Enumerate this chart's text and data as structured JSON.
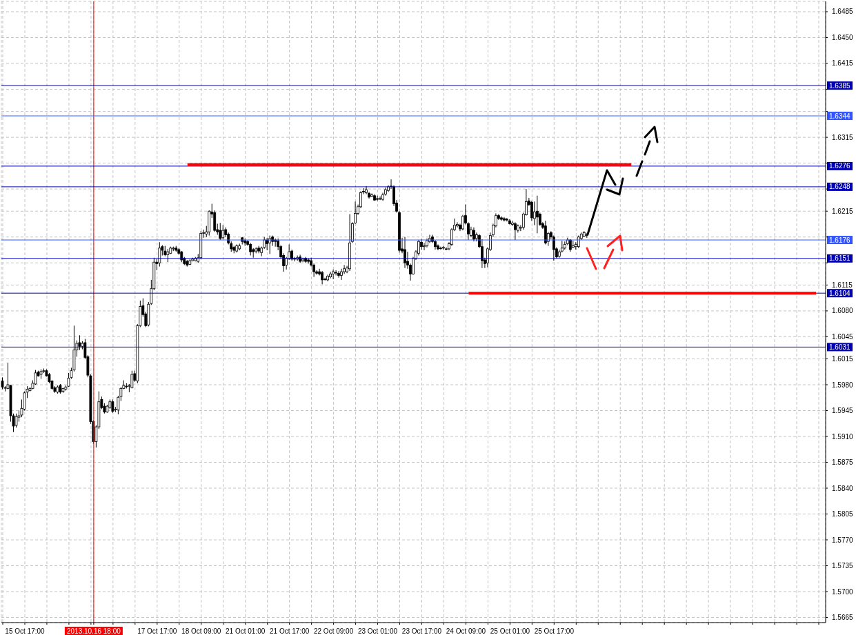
{
  "chart_data": {
    "type": "candlestick",
    "color": "#000000",
    "categories": [
      null,
      null,
      null,
      null,
      null,
      null,
      null,
      null,
      "15 Oct 17:00",
      null,
      null,
      null,
      null,
      null,
      null,
      null,
      null,
      null,
      null,
      null,
      null,
      null,
      null,
      null,
      null,
      null,
      null,
      null,
      null,
      null,
      null,
      null,
      null,
      "2013.10.16 18:00",
      null,
      null,
      null,
      null,
      null,
      null,
      null,
      null,
      null,
      null,
      null,
      null,
      null,
      null,
      null,
      null,
      null,
      null,
      null,
      null,
      null,
      null,
      "17 Oct 17:00",
      null,
      null,
      null,
      null,
      null,
      null,
      null,
      null,
      null,
      null,
      null,
      null,
      null,
      null,
      null,
      "18 Oct 09:00",
      null,
      null,
      null,
      null,
      null,
      null,
      null,
      null,
      null,
      null,
      null,
      null,
      null,
      null,
      null,
      "21 Oct 01:00",
      null,
      null,
      null,
      null,
      null,
      null,
      null,
      null,
      null,
      null,
      null,
      null,
      null,
      null,
      null,
      "21 Oct 17:00",
      null,
      null,
      null,
      null,
      null,
      null,
      null,
      null,
      null,
      null,
      null,
      null,
      null,
      null,
      null,
      "22 Oct 09:00",
      null,
      null,
      null,
      null,
      null,
      null,
      null,
      null,
      null,
      null,
      null,
      null,
      null,
      null,
      null,
      "23 Oct 01:00",
      null,
      null,
      null,
      null,
      null,
      null,
      null,
      null,
      null,
      null,
      null,
      null,
      null,
      null,
      null,
      "23 Oct 17:00",
      null,
      null,
      null,
      null,
      null,
      null,
      null,
      null,
      null,
      null,
      null,
      null,
      null,
      null,
      null,
      "24 Oct 09:00",
      null,
      null,
      null,
      null,
      null,
      null,
      null,
      null,
      null,
      null,
      null,
      null,
      null,
      null,
      null,
      "25 Oct 01:00",
      null,
      null,
      null,
      null,
      null,
      null,
      null,
      null,
      null,
      null,
      null,
      null,
      null,
      null,
      null,
      "25 Oct 17:00",
      null,
      null,
      null,
      null,
      null,
      null,
      null,
      null,
      null,
      null,
      null,
      null,
      null,
      null,
      null,
      null,
      null,
      null,
      null,
      null,
      null,
      null,
      null,
      null,
      null,
      null,
      null,
      null,
      null,
      null,
      null,
      null,
      null,
      null,
      null,
      null,
      null,
      null,
      null,
      null,
      null,
      null,
      null,
      null,
      null,
      null,
      null,
      null,
      null,
      null,
      null,
      null,
      null,
      null,
      null,
      null,
      null,
      null,
      null,
      null,
      null,
      null,
      null,
      null,
      null,
      null,
      null,
      null,
      null,
      null,
      null,
      null,
      null,
      null,
      null,
      null,
      null,
      null,
      null,
      null,
      null,
      null,
      null,
      null,
      null,
      null,
      null,
      null,
      null,
      null,
      null,
      null,
      null,
      null,
      null,
      null,
      null,
      null
    ],
    "ohlc": [
      [
        1.5985,
        1.599,
        1.5974,
        1.5977
      ],
      [
        1.5976,
        1.5978,
        1.5971,
        1.5976
      ],
      [
        1.5975,
        1.601,
        1.5974,
        1.598
      ],
      [
        1.5979,
        1.598,
        1.593,
        1.5938
      ],
      [
        1.5938,
        1.5941,
        1.5916,
        1.5924
      ],
      [
        1.5925,
        1.5941,
        1.5922,
        1.5937
      ],
      [
        1.5936,
        1.5945,
        1.593,
        1.5938
      ],
      [
        1.5939,
        1.596,
        1.5936,
        1.5948
      ],
      [
        1.5947,
        1.5971,
        1.5945,
        1.5969
      ],
      [
        1.597,
        1.5978,
        1.5962,
        1.5974
      ],
      [
        1.5972,
        1.5977,
        1.5971,
        1.5975
      ],
      [
        1.5975,
        1.5986,
        1.5974,
        1.5982
      ],
      [
        1.5981,
        1.6,
        1.598,
        1.5996
      ],
      [
        1.5997,
        1.5999,
        1.5991,
        1.5992
      ],
      [
        1.5994,
        1.6001,
        1.5988,
        1.5998
      ],
      [
        1.5998,
        1.6002,
        1.5996,
        1.5999
      ],
      [
        1.5999,
        1.6001,
        1.5991,
        1.5992
      ],
      [
        1.5994,
        1.5996,
        1.5982,
        1.5984
      ],
      [
        1.5985,
        1.5986,
        1.5973,
        1.5975
      ],
      [
        1.5976,
        1.5978,
        1.5969,
        1.5971
      ],
      [
        1.597,
        1.5979,
        1.5968,
        1.5977
      ],
      [
        1.5979,
        1.5981,
        1.5968,
        1.597
      ],
      [
        1.5971,
        1.5976,
        1.5969,
        1.5975
      ],
      [
        1.5974,
        1.5979,
        1.5972,
        1.5977
      ],
      [
        1.5978,
        1.5996,
        1.5977,
        1.5989
      ],
      [
        1.599,
        1.6003,
        1.5988,
        1.5999
      ],
      [
        1.6,
        1.606,
        1.5998,
        1.6027
      ],
      [
        1.6027,
        1.604,
        1.6018,
        1.6036
      ],
      [
        1.6037,
        1.6047,
        1.6027,
        1.6032
      ],
      [
        1.6032,
        1.6039,
        1.6028,
        1.6036
      ],
      [
        1.6037,
        1.6042,
        1.6015,
        1.6017
      ],
      [
        1.6018,
        1.602,
        1.599,
        1.5993
      ],
      [
        1.5992,
        1.5994,
        1.5927,
        1.593
      ],
      [
        1.593,
        1.5932,
        1.59,
        1.5903
      ],
      [
        1.5903,
        1.5925,
        1.5895,
        1.5923
      ],
      [
        1.5923,
        1.5971,
        1.592,
        1.5957
      ],
      [
        1.596,
        1.5964,
        1.5947,
        1.5949
      ],
      [
        1.5951,
        1.5955,
        1.5941,
        1.5943
      ],
      [
        1.5943,
        1.5953,
        1.5942,
        1.5951
      ],
      [
        1.5949,
        1.596,
        1.5947,
        1.5957
      ],
      [
        1.5957,
        1.596,
        1.5942,
        1.5944
      ],
      [
        1.5946,
        1.595,
        1.5943,
        1.5947
      ],
      [
        1.5946,
        1.5965,
        1.594,
        1.5963
      ],
      [
        1.5964,
        1.5977,
        1.5958,
        1.5975
      ],
      [
        1.5975,
        1.5986,
        1.5974,
        1.5979
      ],
      [
        1.5978,
        1.5982,
        1.5975,
        1.5978
      ],
      [
        1.5978,
        1.5981,
        1.597,
        1.5979
      ],
      [
        1.5976,
        1.5999,
        1.5975,
        1.5994
      ],
      [
        1.5995,
        1.5999,
        1.5984,
        1.5986
      ],
      [
        1.5985,
        1.6062,
        1.5982,
        1.606
      ],
      [
        1.606,
        1.6094,
        1.6058,
        1.6086
      ],
      [
        1.6087,
        1.6097,
        1.6072,
        1.6075
      ],
      [
        1.6076,
        1.6079,
        1.6058,
        1.606
      ],
      [
        1.6061,
        1.6092,
        1.6059,
        1.6089
      ],
      [
        1.609,
        1.6122,
        1.6088,
        1.611
      ],
      [
        1.611,
        1.6152,
        1.6108,
        1.6146
      ],
      [
        1.6146,
        1.615,
        1.6135,
        1.6144
      ],
      [
        1.6145,
        1.6173,
        1.614,
        1.6165
      ],
      [
        1.6167,
        1.6169,
        1.6155,
        1.6162
      ],
      [
        1.6161,
        1.6168,
        1.6154,
        1.6156
      ],
      [
        1.6156,
        1.6164,
        1.6146,
        1.616
      ],
      [
        1.6158,
        1.6167,
        1.6157,
        1.6165
      ],
      [
        1.6164,
        1.6167,
        1.6161,
        1.6165
      ],
      [
        1.6165,
        1.6168,
        1.616,
        1.6162
      ],
      [
        1.6163,
        1.6165,
        1.6156,
        1.6158
      ],
      [
        1.616,
        1.6161,
        1.6146,
        1.6149
      ],
      [
        1.6151,
        1.6153,
        1.6142,
        1.6144
      ],
      [
        1.6147,
        1.6149,
        1.614,
        1.6142
      ],
      [
        1.6143,
        1.615,
        1.6142,
        1.6148
      ],
      [
        1.6148,
        1.6152,
        1.6147,
        1.615
      ],
      [
        1.6148,
        1.6153,
        1.6147,
        1.6151
      ],
      [
        1.6147,
        1.6157,
        1.6145,
        1.6152
      ],
      [
        1.6152,
        1.6188,
        1.615,
        1.6185
      ],
      [
        1.6185,
        1.619,
        1.6179,
        1.6186
      ],
      [
        1.6184,
        1.6195,
        1.618,
        1.6187
      ],
      [
        1.6187,
        1.6216,
        1.6182,
        1.6215
      ],
      [
        1.6214,
        1.6225,
        1.6206,
        1.6211
      ],
      [
        1.6213,
        1.6216,
        1.6187,
        1.6189
      ],
      [
        1.619,
        1.6198,
        1.6183,
        1.6187
      ],
      [
        1.6189,
        1.6199,
        1.6176,
        1.6178
      ],
      [
        1.6179,
        1.6196,
        1.6177,
        1.6189
      ],
      [
        1.619,
        1.6193,
        1.618,
        1.6183
      ],
      [
        1.6184,
        1.6186,
        1.617,
        1.6172
      ],
      [
        1.6171,
        1.6174,
        1.616,
        1.6164
      ],
      [
        1.6166,
        1.6168,
        1.6158,
        1.6162
      ],
      [
        1.6161,
        1.617,
        1.6159,
        1.6168
      ],
      [
        1.6164,
        1.6171,
        1.6162,
        1.6168
      ],
      [
        1.6179,
        1.618,
        1.617,
        1.6174
      ],
      [
        1.6175,
        1.6178,
        1.6168,
        1.6172
      ],
      [
        1.6174,
        1.6176,
        1.6168,
        1.617
      ],
      [
        1.617,
        1.6172,
        1.6155,
        1.616
      ],
      [
        1.6163,
        1.6165,
        1.6152,
        1.616
      ],
      [
        1.6161,
        1.6166,
        1.6158,
        1.6164
      ],
      [
        1.6165,
        1.6168,
        1.6158,
        1.6161
      ],
      [
        1.6159,
        1.6167,
        1.6154,
        1.6165
      ],
      [
        1.6166,
        1.618,
        1.6164,
        1.6176
      ],
      [
        1.6176,
        1.6179,
        1.6162,
        1.6171
      ],
      [
        1.6172,
        1.6182,
        1.6157,
        1.6178
      ],
      [
        1.618,
        1.6182,
        1.6168,
        1.6174
      ],
      [
        1.6176,
        1.6178,
        1.6167,
        1.6174
      ],
      [
        1.6175,
        1.6178,
        1.6162,
        1.6167
      ],
      [
        1.6167,
        1.6169,
        1.6151,
        1.6153
      ],
      [
        1.6155,
        1.6158,
        1.6133,
        1.6141
      ],
      [
        1.6142,
        1.6153,
        1.6136,
        1.6151
      ],
      [
        1.6151,
        1.617,
        1.6149,
        1.616
      ],
      [
        1.6161,
        1.6163,
        1.6148,
        1.615
      ],
      [
        1.6151,
        1.6153,
        1.6147,
        1.615
      ],
      [
        1.615,
        1.6155,
        1.6148,
        1.6152
      ],
      [
        1.6153,
        1.6156,
        1.6145,
        1.6147
      ],
      [
        1.6148,
        1.6152,
        1.6146,
        1.615
      ],
      [
        1.6151,
        1.6153,
        1.6145,
        1.6147
      ],
      [
        1.6149,
        1.6151,
        1.6144,
        1.6147
      ],
      [
        1.6148,
        1.6152,
        1.614,
        1.6142
      ],
      [
        1.6142,
        1.6144,
        1.6126,
        1.6133
      ],
      [
        1.6133,
        1.6135,
        1.6129,
        1.6131
      ],
      [
        1.6133,
        1.6137,
        1.6128,
        1.613
      ],
      [
        1.6132,
        1.6134,
        1.6116,
        1.6122
      ],
      [
        1.6123,
        1.6125,
        1.6121,
        1.6123
      ],
      [
        1.6122,
        1.6129,
        1.612,
        1.6127
      ],
      [
        1.6126,
        1.6133,
        1.6124,
        1.613
      ],
      [
        1.613,
        1.6136,
        1.6123,
        1.6133
      ],
      [
        1.6132,
        1.6135,
        1.6128,
        1.6132
      ],
      [
        1.6131,
        1.6134,
        1.6125,
        1.6128
      ],
      [
        1.6128,
        1.6137,
        1.6122,
        1.6133
      ],
      [
        1.6133,
        1.6142,
        1.613,
        1.6137
      ],
      [
        1.6133,
        1.6141,
        1.6131,
        1.6138
      ],
      [
        1.6137,
        1.6211,
        1.6134,
        1.6172
      ],
      [
        1.6174,
        1.62,
        1.6172,
        1.6198
      ],
      [
        1.6199,
        1.6228,
        1.6198,
        1.6212
      ],
      [
        1.6212,
        1.6224,
        1.621,
        1.6221
      ],
      [
        1.6221,
        1.6242,
        1.6219,
        1.624
      ],
      [
        1.6242,
        1.6246,
        1.6238,
        1.6241
      ],
      [
        1.624,
        1.6249,
        1.6238,
        1.6244
      ],
      [
        1.6239,
        1.6241,
        1.6232,
        1.6234
      ],
      [
        1.6235,
        1.6239,
        1.6234,
        1.6237
      ],
      [
        1.6236,
        1.6238,
        1.6229,
        1.623
      ],
      [
        1.6232,
        1.6236,
        1.6229,
        1.6231
      ],
      [
        1.6232,
        1.6235,
        1.623,
        1.6232
      ],
      [
        1.6231,
        1.624,
        1.6229,
        1.6237
      ],
      [
        1.6238,
        1.6247,
        1.6236,
        1.6244
      ],
      [
        1.6243,
        1.625,
        1.6241,
        1.6248
      ],
      [
        1.6249,
        1.6258,
        1.6245,
        1.6249
      ],
      [
        1.6248,
        1.625,
        1.6222,
        1.6225
      ],
      [
        1.6226,
        1.623,
        1.6213,
        1.6215
      ],
      [
        1.6213,
        1.6215,
        1.6159,
        1.6162
      ],
      [
        1.6164,
        1.6179,
        1.6158,
        1.6161
      ],
      [
        1.6163,
        1.618,
        1.6138,
        1.6145
      ],
      [
        1.6147,
        1.616,
        1.6137,
        1.6142
      ],
      [
        1.6142,
        1.6144,
        1.6121,
        1.613
      ],
      [
        1.613,
        1.6153,
        1.6129,
        1.6151
      ],
      [
        1.6151,
        1.6162,
        1.6149,
        1.616
      ],
      [
        1.6158,
        1.6176,
        1.6155,
        1.6174
      ],
      [
        1.6173,
        1.6177,
        1.6163,
        1.6167
      ],
      [
        1.6167,
        1.6172,
        1.6162,
        1.6168
      ],
      [
        1.6168,
        1.6178,
        1.6166,
        1.6175
      ],
      [
        1.6174,
        1.6183,
        1.6172,
        1.6178
      ],
      [
        1.618,
        1.6183,
        1.6172,
        1.6174
      ],
      [
        1.6174,
        1.6176,
        1.6163,
        1.6167
      ],
      [
        1.6168,
        1.617,
        1.6162,
        1.6164
      ],
      [
        1.6165,
        1.6167,
        1.6163,
        1.6165
      ],
      [
        1.6165,
        1.6168,
        1.6163,
        1.6166
      ],
      [
        1.6164,
        1.6166,
        1.6162,
        1.6164
      ],
      [
        1.6164,
        1.6173,
        1.6162,
        1.6171
      ],
      [
        1.617,
        1.6192,
        1.6168,
        1.619
      ],
      [
        1.619,
        1.6205,
        1.6188,
        1.6196
      ],
      [
        1.6195,
        1.62,
        1.6193,
        1.6197
      ],
      [
        1.6196,
        1.6198,
        1.6188,
        1.6191
      ],
      [
        1.6191,
        1.621,
        1.6189,
        1.6208
      ],
      [
        1.6209,
        1.6224,
        1.6197,
        1.6199
      ],
      [
        1.6198,
        1.62,
        1.6176,
        1.6184
      ],
      [
        1.6182,
        1.6194,
        1.618,
        1.619
      ],
      [
        1.6189,
        1.6193,
        1.6174,
        1.6177
      ],
      [
        1.6178,
        1.6186,
        1.6174,
        1.6183
      ],
      [
        1.6182,
        1.6184,
        1.6165,
        1.6167
      ],
      [
        1.6167,
        1.6177,
        1.6138,
        1.6148
      ],
      [
        1.6149,
        1.6152,
        1.6138,
        1.6144
      ],
      [
        1.6145,
        1.6166,
        1.6139,
        1.6164
      ],
      [
        1.6163,
        1.6186,
        1.6161,
        1.6182
      ],
      [
        1.6183,
        1.6198,
        1.618,
        1.6196
      ],
      [
        1.6195,
        1.6212,
        1.6193,
        1.6209
      ],
      [
        1.6209,
        1.6211,
        1.6203,
        1.6205
      ],
      [
        1.6206,
        1.6208,
        1.6202,
        1.6204
      ],
      [
        1.6205,
        1.6207,
        1.6201,
        1.6203
      ],
      [
        1.6204,
        1.6206,
        1.6201,
        1.6203
      ],
      [
        1.6202,
        1.6204,
        1.6197,
        1.6198
      ],
      [
        1.6197,
        1.6202,
        1.6195,
        1.6199
      ],
      [
        1.6198,
        1.62,
        1.6176,
        1.619
      ],
      [
        1.6189,
        1.6197,
        1.6186,
        1.6195
      ],
      [
        1.6192,
        1.6196,
        1.6188,
        1.6193
      ],
      [
        1.6193,
        1.6213,
        1.619,
        1.6211
      ],
      [
        1.621,
        1.6245,
        1.6209,
        1.6228
      ],
      [
        1.6229,
        1.6233,
        1.6222,
        1.6224
      ],
      [
        1.6227,
        1.6229,
        1.6202,
        1.6206
      ],
      [
        1.6205,
        1.6228,
        1.6196,
        1.6214
      ],
      [
        1.6215,
        1.6236,
        1.6185,
        1.6207
      ],
      [
        1.6211,
        1.6213,
        1.6195,
        1.6197
      ],
      [
        1.6198,
        1.62,
        1.6191,
        1.6193
      ],
      [
        1.6195,
        1.6202,
        1.617,
        1.6172
      ],
      [
        1.6174,
        1.6187,
        1.6168,
        1.6185
      ],
      [
        1.6186,
        1.6188,
        1.6177,
        1.618
      ],
      [
        1.618,
        1.6182,
        1.6148,
        1.6163
      ],
      [
        1.6164,
        1.6166,
        1.6151,
        1.6153
      ],
      [
        1.6154,
        1.6163,
        1.6152,
        1.616
      ],
      [
        1.6161,
        1.6175,
        1.6159,
        1.6165
      ],
      [
        1.6165,
        1.6174,
        1.6163,
        1.617
      ],
      [
        1.6171,
        1.6179,
        1.6169,
        1.6176
      ],
      [
        1.6176,
        1.6177,
        1.616,
        1.6163
      ],
      [
        1.6166,
        1.6175,
        1.6165,
        1.6168
      ],
      [
        1.6167,
        1.6173,
        1.6163,
        1.617
      ],
      [
        1.6167,
        1.6182,
        1.6165,
        1.618
      ],
      [
        1.6178,
        1.6186,
        1.6176,
        1.6184
      ],
      [
        1.6181,
        1.6188,
        1.618,
        1.6186
      ],
      [
        1.6182,
        1.6185,
        1.6179,
        1.6183
      ],
      null,
      null,
      null,
      null,
      null,
      null,
      null,
      null,
      null,
      null,
      null,
      null,
      null,
      null,
      null,
      null,
      null,
      null,
      null,
      null,
      null,
      null,
      null,
      null,
      null,
      null,
      null,
      null,
      null,
      null,
      null,
      null,
      null,
      null,
      null,
      null,
      null,
      null,
      null,
      null,
      null,
      null,
      null,
      null,
      null,
      null,
      null,
      null,
      null,
      null,
      null,
      null,
      null,
      null,
      null,
      null,
      null,
      null,
      null,
      null,
      null,
      null,
      null,
      null,
      null,
      null,
      null,
      null,
      null,
      null,
      null,
      null,
      null,
      null,
      null,
      null,
      null,
      null,
      null,
      null,
      null,
      null,
      null,
      null,
      null,
      null
    ],
    "series": [
      {
        "type": "line",
        "color": "#ff0000",
        "values": [
          null,
          null,
          null,
          null,
          null,
          null,
          null,
          null,
          null,
          null,
          null,
          null,
          null,
          null,
          null,
          null,
          null,
          null,
          null,
          null,
          null,
          null,
          null,
          null,
          null,
          null,
          null,
          null,
          null,
          null,
          null,
          null,
          null,
          null,
          null,
          null,
          null,
          null,
          null,
          null,
          null,
          null,
          null,
          null,
          null,
          null,
          null,
          null,
          null,
          null,
          null,
          null,
          null,
          null,
          null,
          null,
          null,
          null,
          null,
          null,
          null,
          null,
          null,
          null,
          null,
          null,
          null,
          1.6278,
          1.6278,
          1.6278,
          1.6278,
          1.6278,
          1.6278,
          1.6278,
          1.6278,
          1.6278,
          1.6278,
          1.6278,
          1.6278,
          1.6278,
          1.6278,
          1.6278,
          1.6278,
          1.6278,
          1.6278,
          1.6278,
          1.6278,
          1.6278,
          1.6278,
          1.6278,
          1.6278,
          1.6278,
          1.6278,
          1.6278,
          1.6278,
          1.6278,
          1.6278,
          1.6278,
          1.6278,
          1.6278,
          1.6278,
          1.6278,
          1.6278,
          1.6278,
          1.6278,
          1.6278,
          1.6278,
          1.6278,
          1.6278,
          1.6278,
          1.6278,
          1.6278,
          1.6278,
          1.6278,
          1.6278,
          1.6278,
          1.6278,
          1.6278,
          1.6278,
          1.6278,
          1.6278,
          1.6278,
          1.6278,
          1.6278,
          1.6278,
          1.6278,
          1.6278,
          1.6278,
          1.6278,
          1.6278,
          1.6278,
          1.6278,
          1.6278,
          1.6278,
          1.6278,
          1.6278,
          1.6278,
          1.6278,
          1.6278,
          1.6278,
          1.6278,
          1.6278,
          1.6278,
          1.6278,
          1.6278,
          1.6278,
          1.6278,
          1.6278,
          1.6278,
          1.6278,
          1.6278,
          1.6278,
          1.6278,
          1.6278,
          1.6278,
          1.6278,
          1.6278,
          1.6278,
          1.6278,
          1.6278,
          1.6278,
          1.6278,
          1.6278,
          1.6278,
          1.6278,
          1.6278,
          1.6278,
          1.6278,
          1.6278,
          1.6278,
          1.6278,
          1.6278,
          1.6278,
          1.6278,
          1.6278,
          1.6278,
          1.6278,
          1.6278,
          1.6278,
          1.6278,
          1.6278,
          1.6278,
          1.6278,
          1.6278,
          1.6278,
          1.6278,
          1.6278,
          1.6278,
          1.6278,
          1.6278,
          1.6278,
          1.6278,
          1.6278,
          1.6278,
          1.6278,
          1.6278,
          1.6278,
          1.6278,
          1.6278,
          1.6278,
          1.6278,
          1.6278,
          1.6278,
          1.6278,
          1.6278,
          1.6278,
          1.6278,
          1.6278,
          1.6278,
          1.6278,
          1.6278,
          1.6278,
          1.6278,
          1.6278,
          1.6278,
          1.6278,
          1.6278,
          1.6278,
          1.6278,
          1.6278,
          1.6278,
          1.6278,
          1.6278,
          1.6278,
          1.6278,
          1.6278,
          1.6278,
          1.6278,
          1.6278,
          null,
          null,
          null,
          null,
          null,
          null,
          null,
          null,
          null,
          null,
          null,
          null,
          null,
          null,
          null,
          null,
          null,
          null,
          null,
          null,
          null,
          null,
          null,
          null,
          null,
          null,
          null,
          null,
          null,
          null,
          null,
          null,
          null,
          null,
          null,
          null,
          null,
          null,
          null,
          null,
          null,
          null,
          null,
          null,
          null,
          null,
          null,
          null,
          null,
          null,
          null,
          null,
          null,
          null,
          null,
          null,
          null,
          null,
          null,
          null,
          null,
          null,
          null,
          null,
          null,
          null,
          null,
          null,
          null,
          null
        ]
      },
      {
        "type": "line",
        "color": "#ff0000",
        "values": [
          null,
          null,
          null,
          null,
          null,
          null,
          null,
          null,
          null,
          null,
          null,
          null,
          null,
          null,
          null,
          null,
          null,
          null,
          null,
          null,
          null,
          null,
          null,
          null,
          null,
          null,
          null,
          null,
          null,
          null,
          null,
          null,
          null,
          null,
          null,
          null,
          null,
          null,
          null,
          null,
          null,
          null,
          null,
          null,
          null,
          null,
          null,
          null,
          null,
          null,
          null,
          null,
          null,
          null,
          null,
          null,
          null,
          null,
          null,
          null,
          null,
          null,
          null,
          null,
          null,
          null,
          null,
          null,
          null,
          null,
          null,
          null,
          null,
          null,
          null,
          null,
          null,
          null,
          null,
          null,
          null,
          null,
          null,
          null,
          null,
          null,
          null,
          null,
          null,
          null,
          null,
          null,
          null,
          null,
          null,
          null,
          null,
          null,
          null,
          null,
          null,
          null,
          null,
          null,
          null,
          null,
          null,
          null,
          null,
          null,
          null,
          null,
          null,
          null,
          null,
          null,
          null,
          null,
          null,
          null,
          null,
          null,
          null,
          null,
          null,
          null,
          null,
          null,
          null,
          null,
          null,
          null,
          null,
          null,
          null,
          null,
          null,
          null,
          null,
          null,
          null,
          null,
          null,
          null,
          null,
          null,
          null,
          null,
          null,
          null,
          null,
          null,
          null,
          null,
          null,
          null,
          null,
          null,
          null,
          null,
          null,
          null,
          null,
          null,
          null,
          null,
          null,
          null,
          null,
          1.6104,
          1.6104,
          1.6104,
          1.6104,
          1.6104,
          1.6104,
          1.6104,
          1.6104,
          1.6104,
          1.6104,
          1.6104,
          1.6104,
          1.6104,
          1.6104,
          1.6104,
          1.6104,
          1.6104,
          1.6104,
          1.6104,
          1.6104,
          1.6104,
          1.6104,
          1.6104,
          1.6104,
          1.6104,
          1.6104,
          1.6104,
          1.6104,
          1.6104,
          1.6104,
          1.6104,
          1.6104,
          1.6104,
          1.6104,
          1.6104,
          1.6104,
          1.6104,
          1.6104,
          1.6104,
          1.6104,
          1.6104,
          1.6104,
          1.6104,
          1.6104,
          1.6104,
          1.6104,
          1.6104,
          1.6104,
          1.6104,
          1.6104,
          1.6104,
          1.6104,
          1.6104,
          1.6104,
          1.6104,
          1.6104,
          1.6104,
          1.6104,
          1.6104,
          1.6104,
          1.6104,
          1.6104,
          1.6104,
          1.6104,
          1.6104,
          1.6104,
          1.6104,
          1.6104,
          1.6104,
          1.6104,
          1.6104,
          1.6104,
          1.6104,
          1.6104,
          1.6104,
          1.6104,
          1.6104,
          1.6104,
          1.6104,
          1.6104,
          1.6104,
          1.6104,
          1.6104,
          1.6104,
          1.6104,
          1.6104,
          1.6104,
          1.6104,
          1.6104,
          1.6104,
          1.6104,
          1.6104,
          1.6104,
          1.6104,
          1.6104,
          1.6104,
          1.6104,
          1.6104,
          1.6104,
          1.6104,
          1.6104,
          1.6104,
          1.6104,
          1.6104,
          1.6104,
          1.6104,
          1.6104,
          1.6104,
          1.6104,
          1.6104,
          1.6104,
          1.6104,
          1.6104,
          1.6104,
          1.6104,
          1.6104,
          1.6104,
          1.6104,
          1.6104,
          1.6104,
          1.6104,
          1.6104,
          1.6104,
          1.6104,
          1.6104,
          1.6104,
          1.6104,
          null,
          null,
          null
        ]
      }
    ],
    "ylim": [
      1.5658,
      1.6499
    ],
    "yticks": [
      {
        "value": 1.5665,
        "label": "1.5665"
      },
      {
        "value": 1.57,
        "label": "1.5700"
      },
      {
        "value": 1.5735,
        "label": "1.5735"
      },
      {
        "value": 1.577,
        "label": "1.5770"
      },
      {
        "value": 1.5805,
        "label": "1.5805"
      },
      {
        "value": 1.584,
        "label": "1.5840"
      },
      {
        "value": 1.5875,
        "label": "1.5875"
      },
      {
        "value": 1.591,
        "label": "1.5910"
      },
      {
        "value": 1.5945,
        "label": "1.5945"
      },
      {
        "value": 1.598,
        "label": "1.5980"
      },
      {
        "value": 1.6015,
        "label": "1.6015"
      },
      {
        "value": 1.6045,
        "label": "1.6045"
      },
      {
        "value": 1.608,
        "label": "1.6080"
      },
      {
        "value": 1.6115,
        "label": "1.6115"
      },
      {
        "value": 1.6145,
        "label": null
      },
      {
        "value": 1.618,
        "label": null
      },
      {
        "value": 1.6215,
        "label": "1.6215"
      },
      {
        "value": 1.6245,
        "label": null
      },
      {
        "value": 1.628,
        "label": null
      },
      {
        "value": 1.6315,
        "label": "1.6315"
      },
      {
        "value": 1.635,
        "label": null
      },
      {
        "value": 1.638,
        "label": null
      },
      {
        "value": 1.6415,
        "label": "1.6415"
      },
      {
        "value": 1.645,
        "label": "1.6450"
      },
      {
        "value": 1.6485,
        "label": "1.6485"
      }
    ],
    "ref_lines": [
      {
        "axis": "x",
        "value": "2013.10.16 18:00",
        "color": "#ff0000"
      },
      {
        "axis": "y",
        "value": 1.6385,
        "label": "1.6385",
        "color": "#0000b0"
      },
      {
        "axis": "y",
        "value": 1.6344,
        "label": "1.6344",
        "color": "#3355ff"
      },
      {
        "axis": "y",
        "value": 1.6276,
        "label": "1.6276",
        "color": "#0000b0"
      },
      {
        "axis": "y",
        "value": 1.6248,
        "label": "1.6248",
        "color": "#0000b0"
      },
      {
        "axis": "y",
        "value": 1.6176,
        "label": "1.6176",
        "color": "#3355ff"
      },
      {
        "axis": "y",
        "value": 1.6151,
        "label": "1.6151",
        "color": "#0000b0"
      },
      {
        "axis": "y",
        "value": 1.6104,
        "label": "1.6104",
        "color": "#0000b0"
      },
      {
        "axis": "y",
        "value": 1.6031,
        "label": "1.6031",
        "color": "#0000b0"
      }
    ],
    "grid": true
  }
}
